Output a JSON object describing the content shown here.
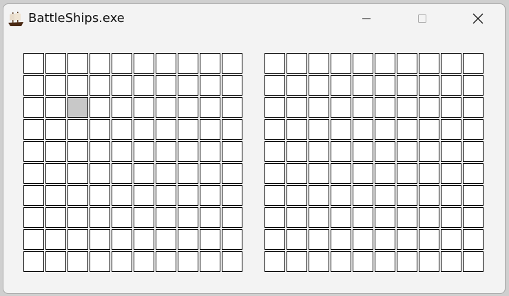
{
  "window": {
    "title": "BattleShips.exe",
    "app_icon": "ship-icon"
  },
  "controls": {
    "minimize": "minimize-icon",
    "maximize": "maximize-icon",
    "close": "close-icon"
  },
  "boards": [
    {
      "name": "player-board",
      "rows": 10,
      "cols": 10,
      "highlighted_cell": {
        "row": 3,
        "col": 3
      }
    },
    {
      "name": "opponent-board",
      "rows": 10,
      "cols": 10
    }
  ],
  "colors": {
    "cell": "#ffffff",
    "cell_highlight": "#c8c8c8",
    "cell_border": "#000000"
  }
}
